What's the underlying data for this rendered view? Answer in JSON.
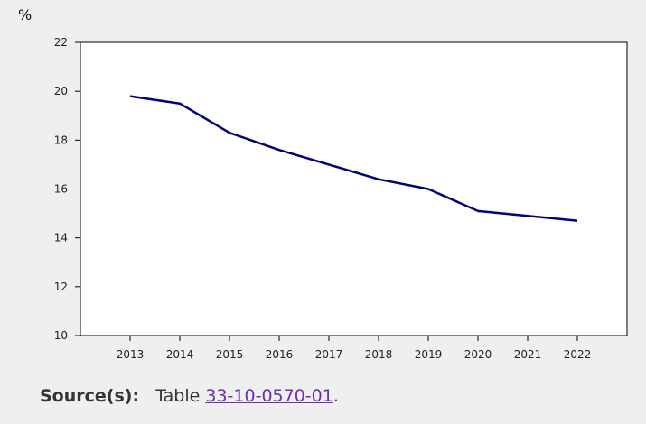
{
  "chart_data": {
    "type": "line",
    "ylabel": "%",
    "ylim": [
      10,
      22
    ],
    "yticks": [
      10,
      12,
      14,
      16,
      18,
      20,
      22
    ],
    "categories": [
      "2013",
      "2014",
      "2015",
      "2016",
      "2017",
      "2018",
      "2019",
      "2020",
      "2021",
      "2022"
    ],
    "series": [
      {
        "values": [
          19.8,
          19.5,
          18.3,
          17.6,
          17.0,
          16.4,
          16.0,
          15.1,
          14.9,
          14.7
        ]
      }
    ],
    "line_color": "#000080",
    "grid": false
  },
  "source": {
    "label": "Source(s):",
    "prefix": "Table",
    "link_text": "33-10-0570-01",
    "suffix": "."
  }
}
